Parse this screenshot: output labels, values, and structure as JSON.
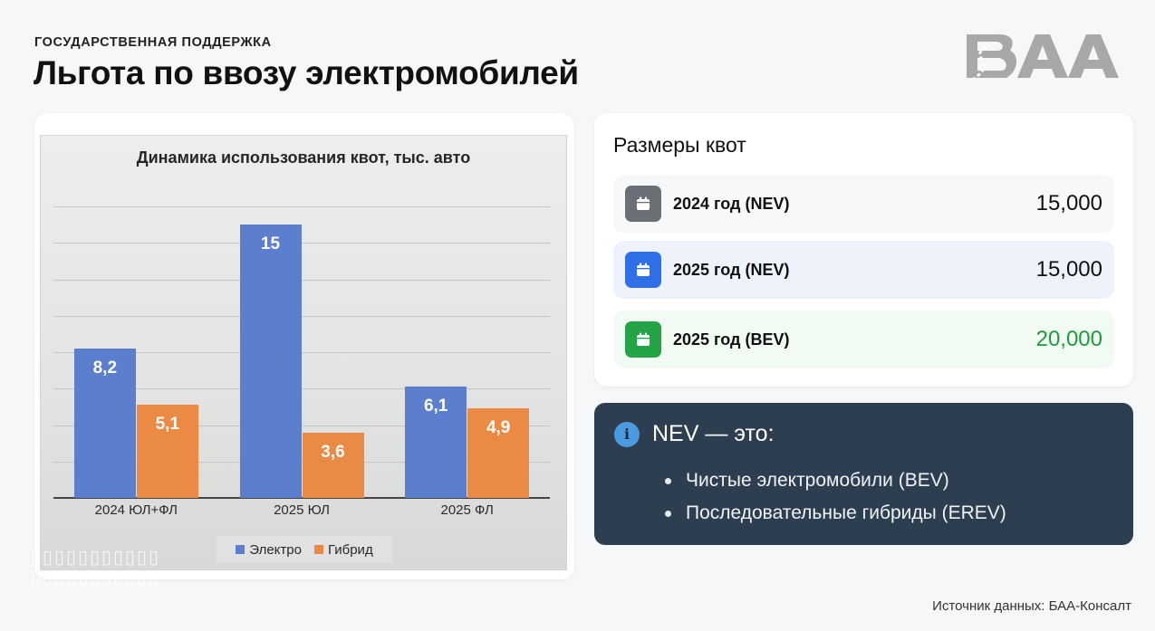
{
  "header": {
    "eyebrow": "ГОСУДАРСТВЕННАЯ ПОДДЕРЖКА",
    "title": "Льгота по ввозу электромобилей",
    "logo_text": "БАА"
  },
  "chart_data": {
    "type": "bar",
    "title": "Динамика использования квот, тыс. авто",
    "categories": [
      "2024 ЮЛ+ФЛ",
      "2025 ЮЛ",
      "2025 ФЛ"
    ],
    "series": [
      {
        "name": "Электро",
        "color": "#5b7fcc",
        "values": [
          8.2,
          15,
          6.1
        ],
        "labels": [
          "8,2",
          "15",
          "6,1"
        ]
      },
      {
        "name": "Гибрид",
        "color": "#ea8a45",
        "values": [
          5.1,
          3.6,
          4.9
        ],
        "labels": [
          "5,1",
          "3,6",
          "4,9"
        ]
      }
    ],
    "xlabel": "",
    "ylabel": "",
    "ylim": [
      0,
      16
    ],
    "grid_step": 2,
    "grid": true,
    "legend_position": "bottom",
    "data_labels": true
  },
  "quotas": {
    "heading": "Размеры квот",
    "items": [
      {
        "label": "2024 год (NEV)",
        "value": "15,000",
        "icon": "calendar-icon",
        "icon_color": "#6b6f76",
        "bg": "#f7f8fa",
        "value_color": "#111111"
      },
      {
        "label": "2025 год (NEV)",
        "value": "15,000",
        "icon": "calendar-icon",
        "icon_color": "#2f6fe8",
        "bg": "#eef3fb",
        "value_color": "#111111"
      },
      {
        "label": "2025 год (BEV)",
        "value": "20,000",
        "icon": "calendar-icon",
        "icon_color": "#22a447",
        "bg": "#f1faf3",
        "value_color": "#1e9a3f"
      }
    ]
  },
  "info": {
    "icon": "info-icon",
    "icon_glyph": "i",
    "heading": "NEV — это:",
    "items": [
      "Чистые электромобили (BEV)",
      "Последовательные гибриды (EREV)"
    ]
  },
  "footer": {
    "source": "Источник данных: БАА-Консалт"
  },
  "colors": {
    "electro": "#5b7fcc",
    "hybrid": "#ea8a45",
    "info_bg": "#2d3e51",
    "accent_green": "#1e9a3f"
  }
}
